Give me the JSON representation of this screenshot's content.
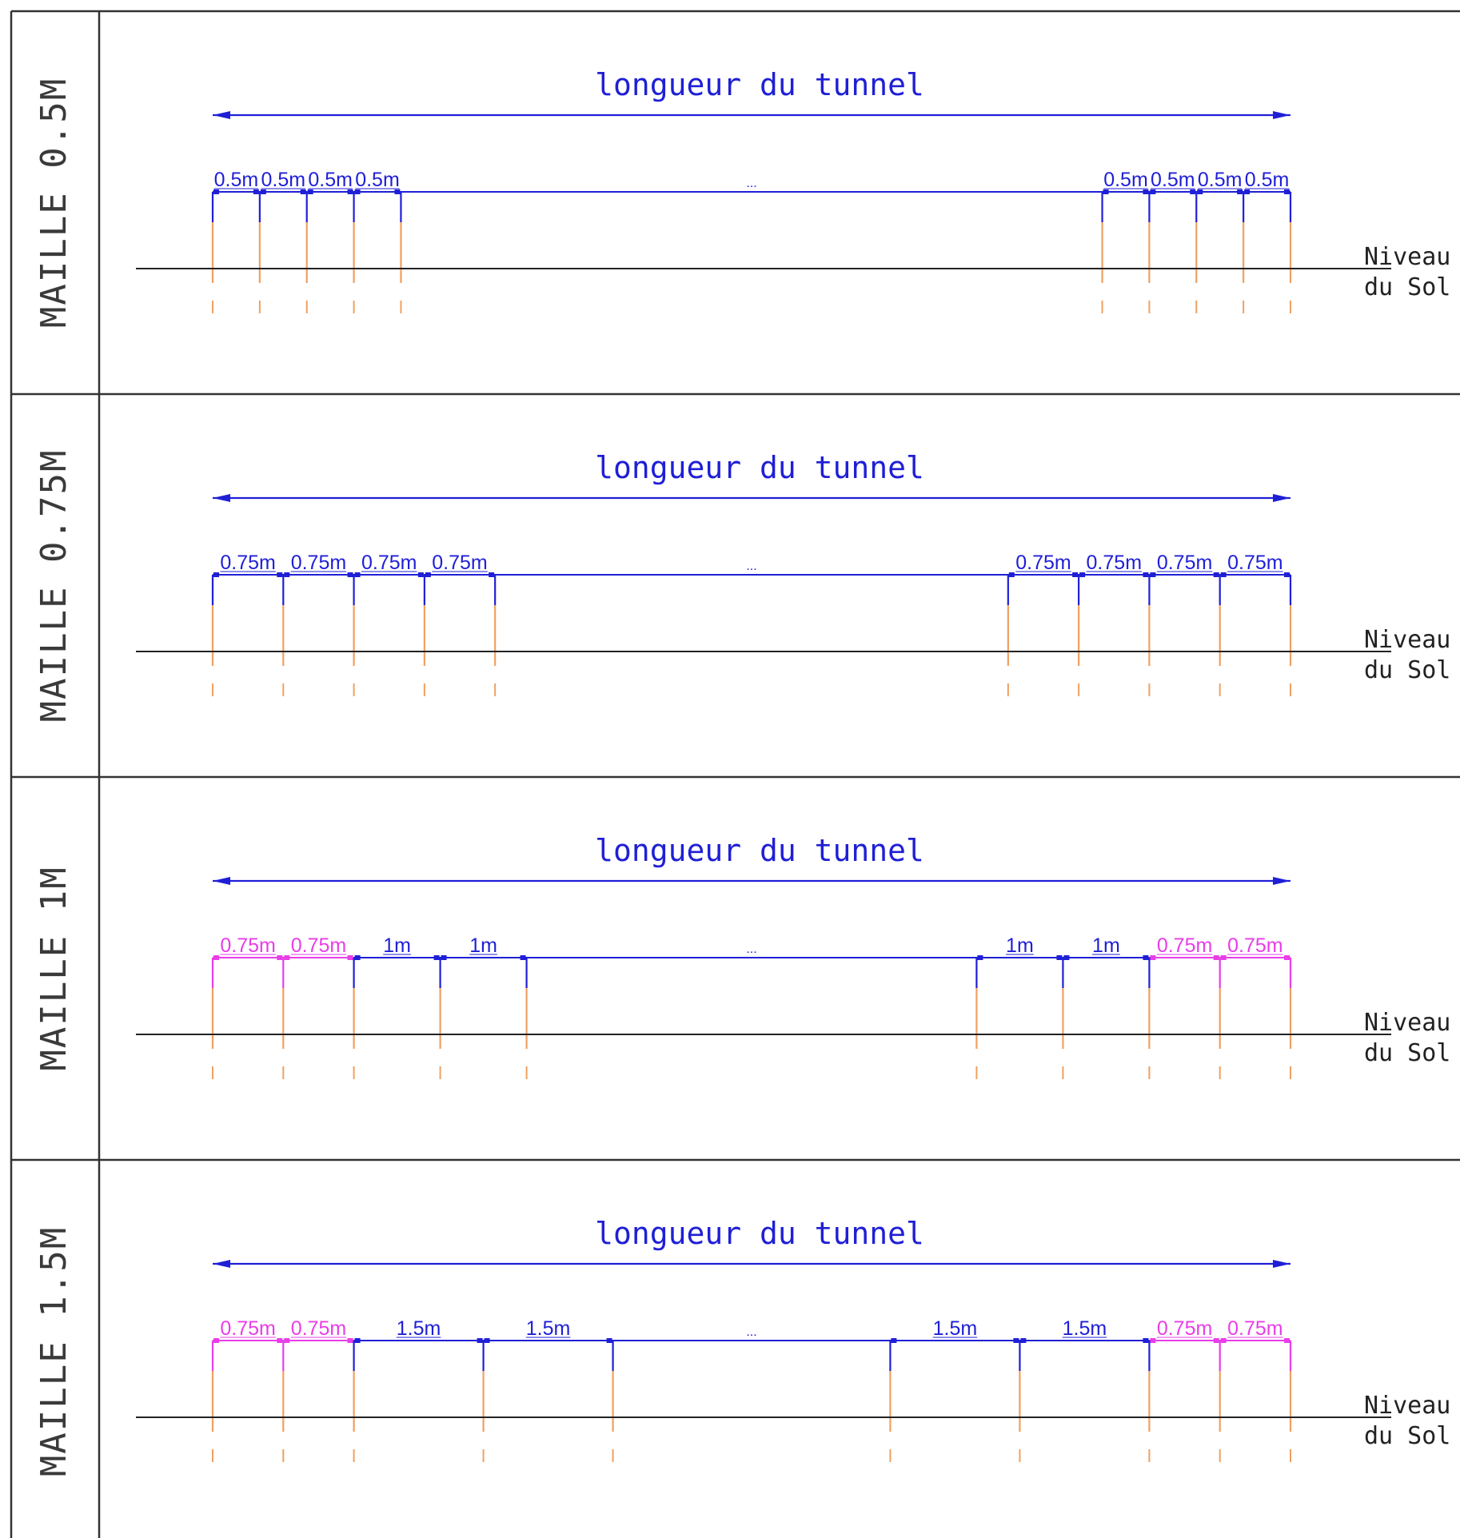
{
  "colors": {
    "dimension": "#1f1fd6",
    "edge_segment": "#e83ee8",
    "pile": "#f0a060",
    "ground": "#222222",
    "frame": "#333333"
  },
  "ground_label": [
    "Niveau",
    "du Sol"
  ],
  "ellipsis": "...",
  "rows": [
    {
      "label": "MAILLE 0.5M",
      "title": "longueur du tunnel",
      "left_segments": [
        {
          "text": "0.5m",
          "size": 0.5,
          "color": "dimension"
        },
        {
          "text": "0.5m",
          "size": 0.5,
          "color": "dimension"
        },
        {
          "text": "0.5m",
          "size": 0.5,
          "color": "dimension"
        },
        {
          "text": "0.5m",
          "size": 0.5,
          "color": "dimension"
        }
      ],
      "right_segments": [
        {
          "text": "0.5m",
          "size": 0.5,
          "color": "dimension"
        },
        {
          "text": "0.5m",
          "size": 0.5,
          "color": "dimension"
        },
        {
          "text": "0.5m",
          "size": 0.5,
          "color": "dimension"
        },
        {
          "text": "0.5m",
          "size": 0.5,
          "color": "dimension"
        }
      ]
    },
    {
      "label": "MAILLE 0.75M",
      "title": "longueur du tunnel",
      "left_segments": [
        {
          "text": "0.75m",
          "size": 0.75,
          "color": "dimension"
        },
        {
          "text": "0.75m",
          "size": 0.75,
          "color": "dimension"
        },
        {
          "text": "0.75m",
          "size": 0.75,
          "color": "dimension"
        },
        {
          "text": "0.75m",
          "size": 0.75,
          "color": "dimension"
        }
      ],
      "right_segments": [
        {
          "text": "0.75m",
          "size": 0.75,
          "color": "dimension"
        },
        {
          "text": "0.75m",
          "size": 0.75,
          "color": "dimension"
        },
        {
          "text": "0.75m",
          "size": 0.75,
          "color": "dimension"
        },
        {
          "text": "0.75m",
          "size": 0.75,
          "color": "dimension"
        }
      ]
    },
    {
      "label": "MAILLE 1M",
      "title": "longueur du tunnel",
      "left_segments": [
        {
          "text": "0.75m",
          "size": 0.75,
          "color": "edge_segment"
        },
        {
          "text": "0.75m",
          "size": 0.75,
          "color": "edge_segment"
        },
        {
          "text": "1m",
          "size": 1,
          "color": "dimension"
        },
        {
          "text": "1m",
          "size": 1,
          "color": "dimension"
        }
      ],
      "right_segments": [
        {
          "text": "1m",
          "size": 1,
          "color": "dimension"
        },
        {
          "text": "1m",
          "size": 1,
          "color": "dimension"
        },
        {
          "text": "0.75m",
          "size": 0.75,
          "color": "edge_segment"
        },
        {
          "text": "0.75m",
          "size": 0.75,
          "color": "edge_segment"
        }
      ]
    },
    {
      "label": "MAILLE 1.5M",
      "title": "longueur du tunnel",
      "left_segments": [
        {
          "text": "0.75m",
          "size": 0.75,
          "color": "edge_segment"
        },
        {
          "text": "0.75m",
          "size": 0.75,
          "color": "edge_segment"
        },
        {
          "text": "1.5m",
          "size": 1.5,
          "color": "dimension"
        },
        {
          "text": "1.5m",
          "size": 1.5,
          "color": "dimension"
        }
      ],
      "right_segments": [
        {
          "text": "1.5m",
          "size": 1.5,
          "color": "dimension"
        },
        {
          "text": "1.5m",
          "size": 1.5,
          "color": "dimension"
        },
        {
          "text": "0.75m",
          "size": 0.75,
          "color": "edge_segment"
        },
        {
          "text": "0.75m",
          "size": 0.75,
          "color": "edge_segment"
        }
      ]
    }
  ]
}
